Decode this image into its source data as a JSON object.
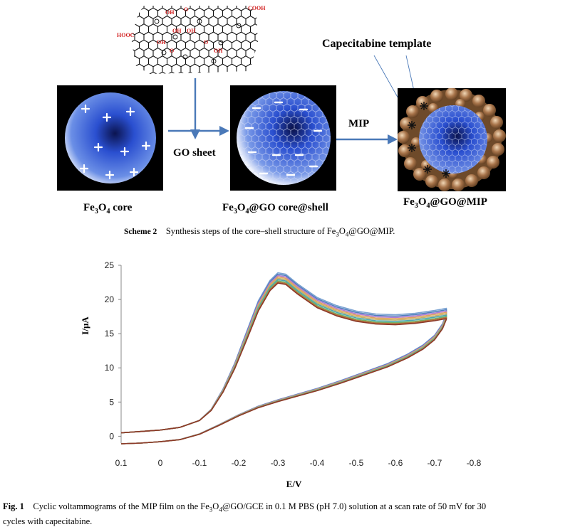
{
  "scheme": {
    "go_sheet_label": "GO sheet",
    "mip_label": "MIP",
    "template_label": "Capecitabine template",
    "core_label": "Fe3O4 core",
    "core_shell_label": "Fe3O4@GO core@shell",
    "final_label": "Fe3O4@GO@MIP",
    "cooh_top": "COOH",
    "cooh_left": "HOOC",
    "oh_labels": [
      "OH",
      "O",
      "OH",
      "OH",
      "OH",
      "O",
      "O",
      "OH"
    ],
    "caption_head": "Scheme 2",
    "caption_text": "Synthesis steps of the core–shell structure of Fe3O4@GO@MIP."
  },
  "colors": {
    "core_blue": "#2a4fd0",
    "shell_brown": "#a8744a",
    "cooh_red": "#d21f1f",
    "arrow_blue": "#4a79b8"
  },
  "chart_data": {
    "type": "line",
    "title": "",
    "xlabel": "E/V",
    "ylabel": "I/μA",
    "xlim": [
      0.1,
      -0.8
    ],
    "ylim": [
      -1,
      25
    ],
    "x_ticks": [
      "0.1",
      "0",
      "-0.1",
      "-0.2",
      "-0.3",
      "-0.4",
      "-0.5",
      "-0.6",
      "-0.7",
      "-0.8"
    ],
    "y_ticks": [
      "0",
      "5",
      "10",
      "15",
      "20",
      "25"
    ],
    "grid": false,
    "legend": "none",
    "cycles": 30,
    "forward_scan": {
      "x": [
        0.1,
        0.05,
        0.0,
        -0.05,
        -0.1,
        -0.13,
        -0.16,
        -0.19,
        -0.22,
        -0.25,
        -0.28,
        -0.3,
        -0.32,
        -0.35,
        -0.4,
        -0.45,
        -0.5,
        -0.55,
        -0.6,
        -0.65,
        -0.7,
        -0.73
      ],
      "y": [
        0.5,
        0.7,
        0.9,
        1.3,
        2.3,
        3.8,
        6.5,
        10.0,
        14.2,
        18.5,
        21.5,
        22.6,
        22.4,
        21.0,
        19.0,
        17.8,
        17.0,
        16.6,
        16.5,
        16.7,
        17.1,
        17.4
      ]
    },
    "reverse_scan": {
      "x": [
        -0.73,
        -0.72,
        -0.7,
        -0.67,
        -0.63,
        -0.58,
        -0.52,
        -0.46,
        -0.4,
        -0.35,
        -0.3,
        -0.25,
        -0.2,
        -0.15,
        -0.1,
        -0.05,
        0.0,
        0.05,
        0.1
      ],
      "y": [
        17.2,
        15.8,
        14.2,
        12.8,
        11.5,
        10.2,
        9.0,
        7.8,
        6.7,
        5.9,
        5.1,
        4.2,
        3.0,
        1.6,
        0.3,
        -0.5,
        -0.8,
        -1.0,
        -1.1
      ]
    },
    "series": [
      {
        "color": "#7aa2d2",
        "offset": 1.3
      },
      {
        "color": "#4f7ebd",
        "offset": 1.1
      },
      {
        "color": "#b07bd0",
        "offset": 0.9
      },
      {
        "color": "#e0a35b",
        "offset": 0.7
      },
      {
        "color": "#c4b06a",
        "offset": 0.5
      },
      {
        "color": "#4aa6b0",
        "offset": 0.3
      },
      {
        "color": "#6eb26a",
        "offset": 0.1
      },
      {
        "color": "#b9713b",
        "offset": -0.05
      },
      {
        "color": "#8c3a2a",
        "offset": -0.2
      }
    ]
  },
  "figure": {
    "caption_head": "Fig. 1",
    "caption_line1": "Cyclic voltammograms of the MIP film on the Fe3O4@GO/GCE in 0.1 M PBS (pH 7.0) solution at a scan rate of 50 mV for 30",
    "caption_line2": "cycles with capecitabine."
  }
}
